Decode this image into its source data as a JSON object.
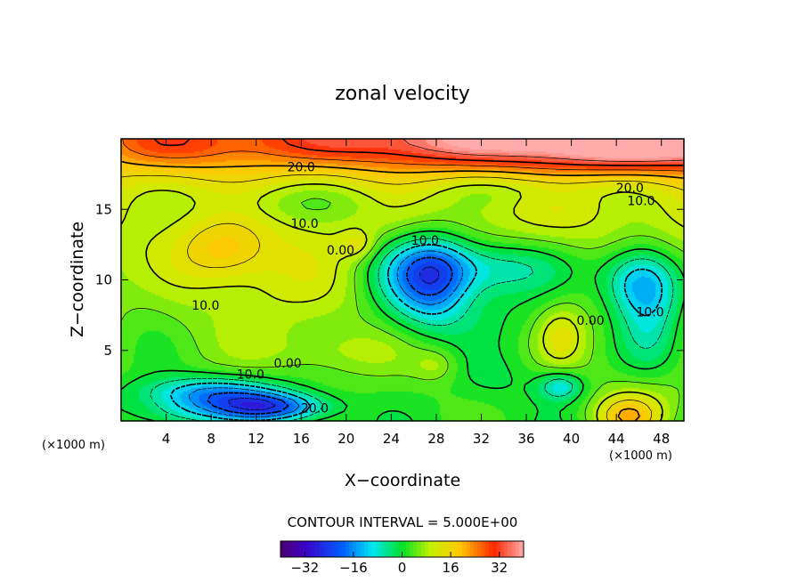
{
  "chart_data": {
    "type": "heatmap",
    "title": "zonal velocity",
    "xlabel": "X−coordinate",
    "ylabel": "Z−coordinate",
    "x_unit": "(×1000 m)",
    "y_unit": "(×1000 m)",
    "xlim": [
      0,
      50
    ],
    "ylim": [
      0,
      20
    ],
    "x_ticks": [
      4,
      8,
      12,
      16,
      20,
      24,
      28,
      32,
      36,
      40,
      44,
      48
    ],
    "y_ticks": [
      5,
      10,
      15
    ],
    "contour_interval_text": "CONTOUR INTERVAL = 5.000E+00",
    "contour_interval": 5.0,
    "colorbar": {
      "min": -40,
      "max": 40,
      "tick_values": [
        -32,
        -16,
        0,
        16,
        32
      ],
      "tick_labels": [
        "−32",
        "−16",
        "0",
        "16",
        "32"
      ]
    },
    "contour_labels": [
      {
        "text": "20.0",
        "x": 16,
        "y": 17.7
      },
      {
        "text": "20.0",
        "x": 45.2,
        "y": 16.2
      },
      {
        "text": "10.0",
        "x": 46.2,
        "y": 15.3
      },
      {
        "text": "10.0",
        "x": 16.3,
        "y": 13.7
      },
      {
        "text": "10.0",
        "x": 27,
        "y": 12.5
      },
      {
        "text": "0.00",
        "x": 19.5,
        "y": 11.8
      },
      {
        "text": "10.0",
        "x": 7.5,
        "y": 7.9
      },
      {
        "text": "0.00",
        "x": 41.7,
        "y": 6.8
      },
      {
        "text": "10.0",
        "x": 47,
        "y": 7.4
      },
      {
        "text": "0.00",
        "x": 14.8,
        "y": 3.8
      },
      {
        "text": "10.0",
        "x": 11.5,
        "y": 3.0
      },
      {
        "text": "20.0",
        "x": 17.2,
        "y": 0.6
      }
    ],
    "field_features": [
      {
        "x": 50,
        "y": 20,
        "value": 34,
        "sx": 40,
        "sy": 2.2
      },
      {
        "x": 4,
        "y": 19.5,
        "value": 6,
        "sx": 6,
        "sy": 2
      },
      {
        "x": 44,
        "y": 19.5,
        "value": 4,
        "sx": 6,
        "sy": 1.5
      },
      {
        "x": 16,
        "y": 15.5,
        "value": -5,
        "sx": 9,
        "sy": 1.5
      },
      {
        "x": 36,
        "y": 16.5,
        "value": -4,
        "sx": 8,
        "sy": 1.2
      },
      {
        "x": 9,
        "y": 12,
        "value": 9,
        "sx": 4,
        "sy": 2.2
      },
      {
        "x": 21,
        "y": 12.5,
        "value": 6,
        "sx": 1.5,
        "sy": 1
      },
      {
        "x": 14,
        "y": 10,
        "value": 3,
        "sx": 6,
        "sy": 4
      },
      {
        "x": 26,
        "y": 10,
        "value": -14,
        "sx": 4,
        "sy": 3.5
      },
      {
        "x": 32,
        "y": 11,
        "value": -14,
        "sx": 8,
        "sy": 2
      },
      {
        "x": 28,
        "y": 10,
        "value": -12,
        "sx": 3,
        "sy": 3
      },
      {
        "x": 33,
        "y": 8,
        "value": -6,
        "sx": 6,
        "sy": 3
      },
      {
        "x": 46,
        "y": 10,
        "value": -18,
        "sx": 3.5,
        "sy": 2.5
      },
      {
        "x": 47,
        "y": 7,
        "value": -10,
        "sx": 3,
        "sy": 4
      },
      {
        "x": 39,
        "y": 6,
        "value": 8,
        "sx": 2,
        "sy": 2
      },
      {
        "x": 39,
        "y": 2.5,
        "value": -12,
        "sx": 2,
        "sy": 1
      },
      {
        "x": 28,
        "y": 4,
        "value": 5,
        "sx": 2,
        "sy": 1.2
      },
      {
        "x": 19,
        "y": 5,
        "value": 4,
        "sx": 6,
        "sy": 1.5
      },
      {
        "x": 8,
        "y": 2,
        "value": -18,
        "sx": 6,
        "sy": 1.2
      },
      {
        "x": 13,
        "y": 1,
        "value": -24,
        "sx": 5,
        "sy": 1
      },
      {
        "x": 5,
        "y": 0.5,
        "value": -6,
        "sx": 4,
        "sy": 1
      },
      {
        "x": 45,
        "y": 0.3,
        "value": 16,
        "sx": 3,
        "sy": 1.5
      },
      {
        "x": 47,
        "y": 2,
        "value": 4,
        "sx": 4,
        "sy": 2
      },
      {
        "x": 2,
        "y": 8,
        "value": -2,
        "sx": 3,
        "sy": 5
      },
      {
        "x": 33,
        "y": 3,
        "value": -4,
        "sx": 4,
        "sy": 2
      }
    ]
  }
}
